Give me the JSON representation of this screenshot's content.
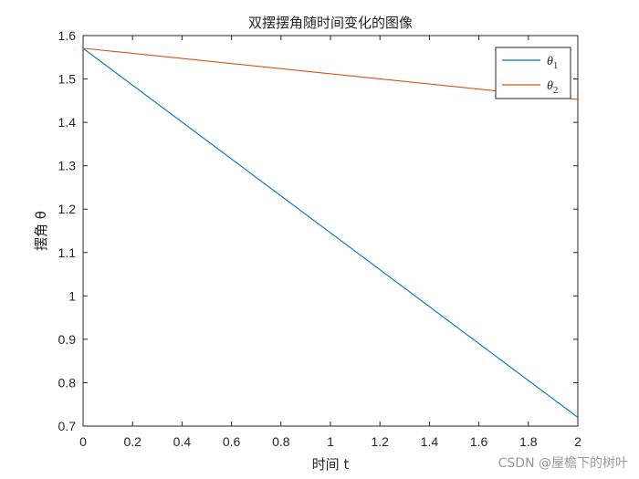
{
  "chart_data": {
    "type": "line",
    "title": "双摆摆角随时间变化的图像",
    "xlabel": "时间 t",
    "ylabel": "摆角 θ",
    "xlim": [
      0,
      2
    ],
    "ylim": [
      0.7,
      1.6
    ],
    "xticks": [
      0,
      0.2,
      0.4,
      0.6,
      0.8,
      1,
      1.2,
      1.4,
      1.6,
      1.8,
      2
    ],
    "xtick_labels": [
      "0",
      "0.2",
      "0.4",
      "0.6",
      "0.8",
      "1",
      "1.2",
      "1.4",
      "1.6",
      "1.8",
      "2"
    ],
    "yticks": [
      0.7,
      0.8,
      0.9,
      1,
      1.1,
      1.2,
      1.3,
      1.4,
      1.5,
      1.6
    ],
    "ytick_labels": [
      "0.7",
      "0.8",
      "0.9",
      "1",
      "1.1",
      "1.2",
      "1.3",
      "1.4",
      "1.5",
      "1.6"
    ],
    "grid": false,
    "legend_position": "top-right",
    "series": [
      {
        "name": "θ",
        "subscript": "1",
        "color": "#0072BD",
        "x": [
          0,
          2
        ],
        "y": [
          1.5708,
          0.72
        ]
      },
      {
        "name": "θ",
        "subscript": "2",
        "color": "#D95319",
        "x": [
          0,
          2
        ],
        "y": [
          1.5708,
          1.453
        ]
      }
    ]
  },
  "watermark": "CSDN @屋檐下的树叶"
}
